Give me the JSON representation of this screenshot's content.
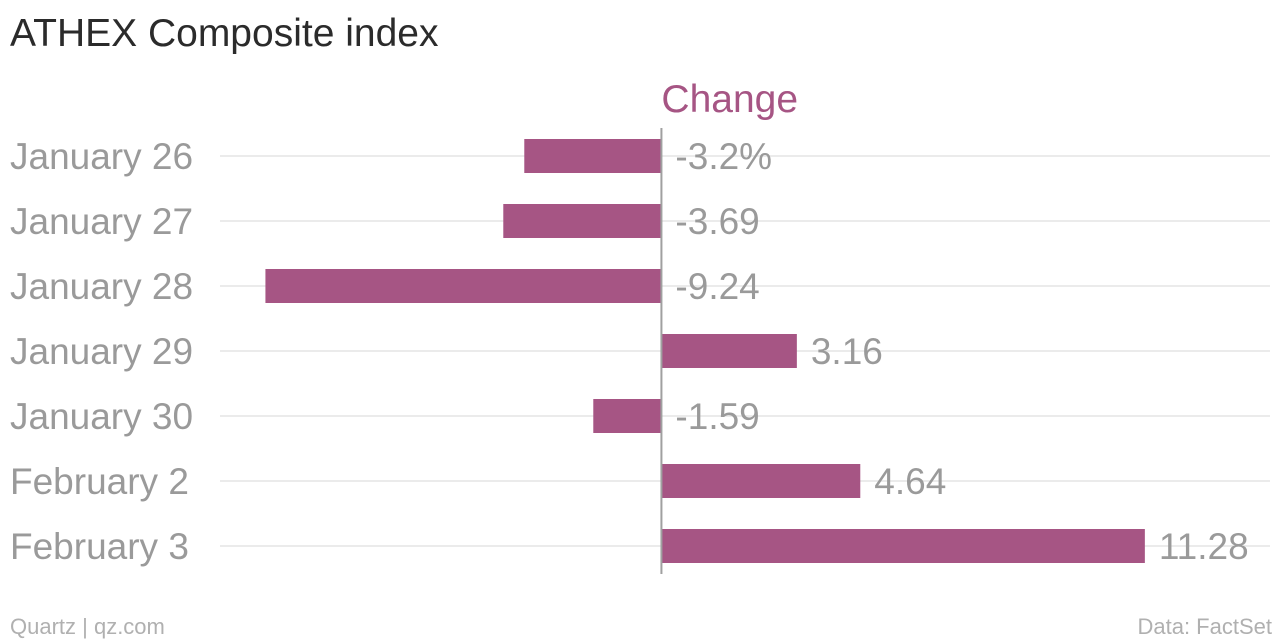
{
  "chart_data": {
    "type": "bar",
    "orientation": "horizontal",
    "title": "ATHEX Composite index",
    "series": [
      {
        "name": "Change",
        "values": [
          -3.2,
          -3.69,
          -9.24,
          3.16,
          -1.59,
          4.64,
          11.28
        ],
        "value_labels": [
          "-3.2%",
          "-3.69",
          "-9.24",
          "3.16",
          "-1.59",
          "4.64",
          "11.28"
        ]
      }
    ],
    "categories": [
      "January 26",
      "January 27",
      "January 28",
      "January 29",
      "January 30",
      "February 2",
      "February 3"
    ],
    "xlim": [
      -10.3,
      14.2
    ],
    "grid": true,
    "legend": "top-center"
  },
  "colors": {
    "bar": "#a65584",
    "series_label": "#a65584",
    "category_text": "#9a9a9a",
    "value_text": "#9a9a9a",
    "grid": "#ebebeb",
    "axis": "#a0a0a0",
    "title": "#2b2b2b"
  },
  "footer": {
    "source_left": "Quartz | qz.com",
    "source_right": "Data: FactSet"
  }
}
